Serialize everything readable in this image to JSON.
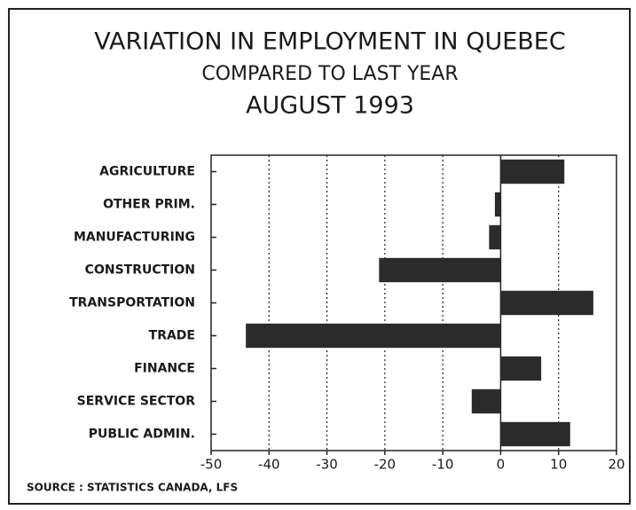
{
  "chart_data": {
    "type": "bar",
    "orientation": "horizontal",
    "title": "VARIATION IN EMPLOYMENT IN QUEBEC",
    "subtitle": "COMPARED TO LAST YEAR",
    "subtitle2": "AUGUST 1993",
    "source": "SOURCE : STATISTICS CANADA, LFS",
    "categories": [
      "AGRICULTURE",
      "OTHER PRIM.",
      "MANUFACTURING",
      "CONSTRUCTION",
      "TRANSPORTATION",
      "TRADE",
      "FINANCE",
      "SERVICE SECTOR",
      "PUBLIC ADMIN."
    ],
    "values": [
      11,
      -1,
      -2,
      -21,
      16,
      -44,
      7,
      -5,
      12
    ],
    "color": "#2b2b2b",
    "xlim": [
      -50,
      20
    ],
    "xticks": [
      -50,
      -40,
      -30,
      -20,
      -10,
      0,
      10,
      20
    ],
    "grid": true
  }
}
